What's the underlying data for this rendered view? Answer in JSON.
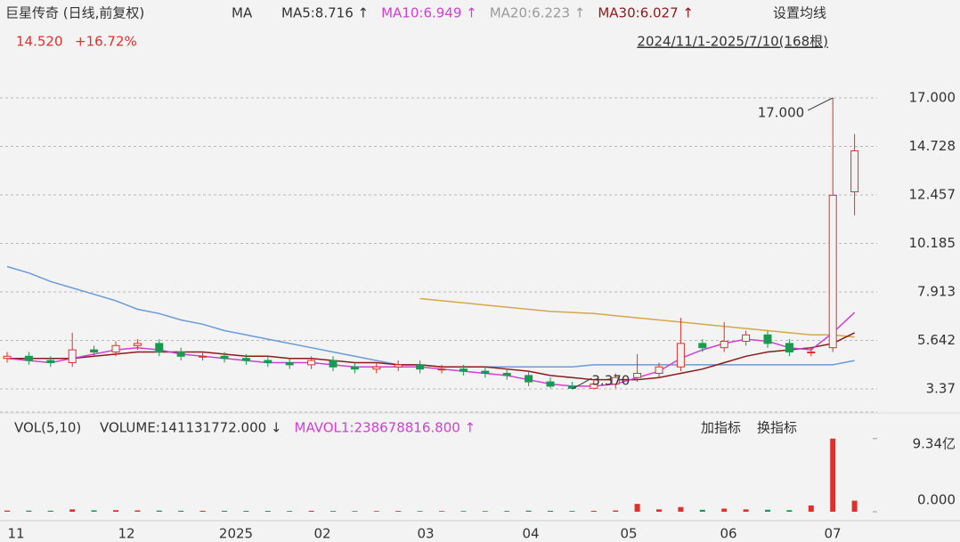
{
  "chart_data": {
    "type": "candlestick",
    "title": "巨星传奇 (日线,前复权)",
    "indicator": "MA",
    "legend": [
      {
        "label": "MA5:8.716 ↑",
        "color": "#333333"
      },
      {
        "label": "MA10:6.949 ↑",
        "color": "#d23fd2"
      },
      {
        "label": "MA20:6.223 ↑",
        "color": "#9a9a9a"
      },
      {
        "label": "MA30:6.027 ↑",
        "color": "#8b1a1a"
      }
    ],
    "settings_button": "设置均线",
    "last_price": "14.520",
    "change": "+16.72%",
    "range_label": "2024/11/1-2025/7/10(168根)",
    "xlabels": [
      "11",
      "12",
      "2025",
      "02",
      "03",
      "04",
      "05",
      "06",
      "07"
    ],
    "ylim": [
      2.62,
      18.04
    ],
    "yticks": [
      3.37,
      5.642,
      7.913,
      10.185,
      12.457,
      14.728,
      {
        "value": 17,
        "label": "17.000"
      }
    ],
    "grid": true,
    "up_color": "#e0302c",
    "down_color": "#1a9a50",
    "open": [
      4.8,
      4.9,
      4.7,
      4.6,
      5.2,
      5.1,
      5.4,
      5.5,
      5.1,
      4.9,
      4.9,
      4.8,
      4.7,
      4.6,
      4.5,
      4.7,
      4.4,
      4.3,
      4.4,
      4.5,
      4.3,
      4.3,
      4.2,
      4.1,
      4.0,
      3.7,
      3.5,
      3.4,
      3.6,
      3.9,
      4.1,
      4.4,
      5.5,
      5.3,
      5.6,
      5.9,
      5.5,
      5.1,
      5.3,
      12.6
    ],
    "high": [
      5.1,
      5.1,
      4.9,
      6.0,
      5.4,
      5.6,
      5.7,
      5.7,
      5.3,
      5.1,
      5.1,
      5.0,
      4.9,
      4.8,
      4.9,
      4.9,
      4.6,
      4.6,
      4.7,
      4.7,
      4.5,
      4.5,
      4.4,
      4.3,
      4.2,
      3.9,
      3.7,
      3.8,
      4.1,
      5.0,
      4.6,
      6.7,
      5.7,
      6.5,
      6.1,
      6.1,
      5.7,
      5.3,
      17.0,
      15.3
    ],
    "low": [
      4.6,
      4.5,
      4.4,
      4.4,
      4.9,
      4.9,
      5.2,
      4.9,
      4.7,
      4.7,
      4.6,
      4.5,
      4.4,
      4.3,
      4.3,
      4.2,
      4.1,
      4.1,
      4.2,
      4.1,
      4.1,
      4.0,
      3.9,
      3.8,
      3.5,
      3.4,
      3.37,
      3.4,
      3.4,
      3.7,
      3.9,
      4.2,
      5.1,
      5.1,
      5.4,
      5.3,
      4.9,
      4.9,
      5.1,
      11.5
    ],
    "close": [
      4.9,
      4.7,
      4.6,
      5.2,
      5.1,
      5.4,
      5.5,
      5.1,
      4.9,
      4.9,
      4.8,
      4.7,
      4.6,
      4.5,
      4.7,
      4.4,
      4.3,
      4.4,
      4.5,
      4.3,
      4.3,
      4.2,
      4.1,
      4.0,
      3.7,
      3.5,
      3.4,
      3.6,
      3.9,
      4.1,
      4.4,
      5.5,
      5.3,
      5.6,
      5.9,
      5.5,
      5.1,
      5.1,
      12.44,
      14.52
    ],
    "series": [
      {
        "color": "#6a9bd6",
        "values": [
          9.1,
          8.8,
          8.4,
          8.1,
          7.8,
          7.5,
          7.1,
          6.9,
          6.6,
          6.4,
          6.1,
          5.9,
          5.7,
          5.5,
          5.3,
          5.1,
          4.9,
          4.7,
          4.5,
          4.5,
          4.4,
          4.4,
          4.4,
          4.4,
          4.4,
          4.4,
          4.4,
          4.5,
          4.5,
          4.5,
          4.5,
          4.5,
          4.5,
          4.5,
          4.5,
          4.5,
          4.5,
          4.5,
          4.5,
          4.7
        ]
      },
      {
        "color": "#d4a84a",
        "values": [
          null,
          null,
          null,
          null,
          null,
          null,
          null,
          null,
          null,
          null,
          null,
          null,
          null,
          null,
          null,
          null,
          null,
          null,
          null,
          7.6,
          7.5,
          7.4,
          7.3,
          7.2,
          7.1,
          7.0,
          6.95,
          6.9,
          6.8,
          6.7,
          6.6,
          6.5,
          6.4,
          6.3,
          6.2,
          6.1,
          6.0,
          5.9,
          5.9,
          5.8
        ]
      },
      {
        "color": "#8b1a1a",
        "values": [
          4.8,
          4.8,
          4.8,
          4.8,
          4.9,
          5.0,
          5.1,
          5.1,
          5.1,
          5.1,
          5.0,
          4.9,
          4.9,
          4.8,
          4.8,
          4.7,
          4.6,
          4.6,
          4.5,
          4.5,
          4.4,
          4.4,
          4.4,
          4.3,
          4.2,
          4.0,
          3.9,
          3.8,
          3.8,
          3.8,
          3.9,
          4.1,
          4.3,
          4.6,
          4.9,
          5.1,
          5.2,
          5.3,
          5.5,
          6.0
        ]
      },
      {
        "color": "#d23fd2",
        "values": [
          4.8,
          4.7,
          4.6,
          4.8,
          5.0,
          5.2,
          5.3,
          5.2,
          5.0,
          4.9,
          4.8,
          4.7,
          4.6,
          4.6,
          4.6,
          4.5,
          4.4,
          4.4,
          4.4,
          4.4,
          4.3,
          4.2,
          4.1,
          4.0,
          3.8,
          3.6,
          3.5,
          3.5,
          3.6,
          3.9,
          4.2,
          4.8,
          5.2,
          5.5,
          5.7,
          5.6,
          5.3,
          5.2,
          6.0,
          6.95
        ]
      }
    ],
    "annotations": [
      {
        "value": 17,
        "label": "17.000"
      },
      {
        "value": 3.37,
        "label": "3.370"
      }
    ],
    "volume": {
      "title": "VOL(5,10)",
      "legend": [
        {
          "label": "VOLUME:141131772.000 ↓",
          "color": "#333333"
        },
        {
          "label": "MAVOL1:238678816.800 ↑",
          "color": "#d23fd2"
        }
      ],
      "buttons": [
        "加指标",
        "换指标"
      ],
      "ylim": [
        0,
        1000000000
      ],
      "yticks": [
        {
          "value": 0,
          "label": "0.000"
        },
        {
          "value": 934000000,
          "label": "9.34亿"
        }
      ],
      "values": [
        15000000,
        14000000,
        13000000,
        30000000,
        18000000,
        20000000,
        17000000,
        15000000,
        13000000,
        12000000,
        12000000,
        11000000,
        11000000,
        10000000,
        12000000,
        10000000,
        9000000,
        9000000,
        10000000,
        9000000,
        9000000,
        9000000,
        9000000,
        10000000,
        14000000,
        12000000,
        10000000,
        12000000,
        16000000,
        100000000,
        30000000,
        60000000,
        25000000,
        40000000,
        30000000,
        25000000,
        20000000,
        80000000,
        934000000,
        141131772
      ]
    }
  }
}
